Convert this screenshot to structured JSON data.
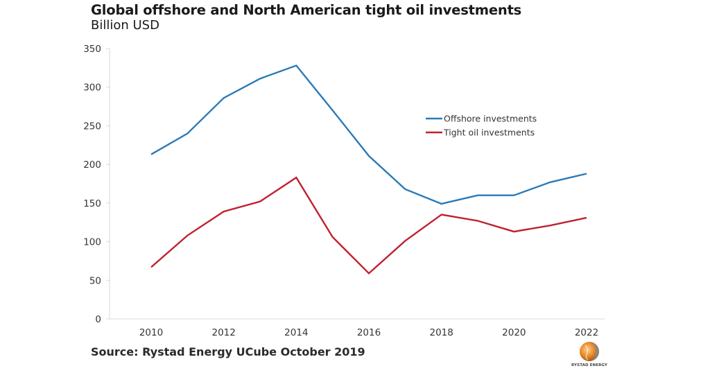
{
  "header": {
    "title": "Global offshore and North American tight oil investments",
    "subtitle": "Billion USD"
  },
  "footer": {
    "source": "Source: Rystad Energy UCube October 2019",
    "logo_text": "RYSTAD ENERGY",
    "logo_icon": "globe-logo-icon"
  },
  "colors": {
    "offshore": "#2a7ab8",
    "tight_oil": "#c0202e",
    "axis": "#d9d9d9",
    "logo_orange": "#e8892a",
    "logo_grey": "#8a8a8a"
  },
  "chart_data": {
    "type": "line",
    "title": "Global offshore and North American tight oil investments",
    "subtitle": "Billion USD",
    "xlabel": "",
    "ylabel": "Billion USD",
    "x": [
      2010,
      2011,
      2012,
      2013,
      2014,
      2015,
      2016,
      2017,
      2018,
      2019,
      2020,
      2021,
      2022
    ],
    "x_tick_labels": [
      "2010",
      "2012",
      "2014",
      "2016",
      "2018",
      "2020",
      "2022"
    ],
    "y_tick_labels": [
      "0",
      "50",
      "100",
      "150",
      "200",
      "250",
      "300",
      "350"
    ],
    "ylim": [
      0,
      350
    ],
    "xlim": [
      2010,
      2022
    ],
    "grid": false,
    "legend_position": "right-center",
    "series": [
      {
        "name": "Offshore investments",
        "color_key": "offshore",
        "values": [
          213,
          240,
          286,
          311,
          328,
          270,
          211,
          168,
          149,
          160,
          160,
          177,
          188
        ]
      },
      {
        "name": "Tight oil investments",
        "color_key": "tight_oil",
        "values": [
          67,
          108,
          139,
          152,
          183,
          106,
          59,
          101,
          135,
          127,
          113,
          121,
          131
        ]
      }
    ]
  }
}
